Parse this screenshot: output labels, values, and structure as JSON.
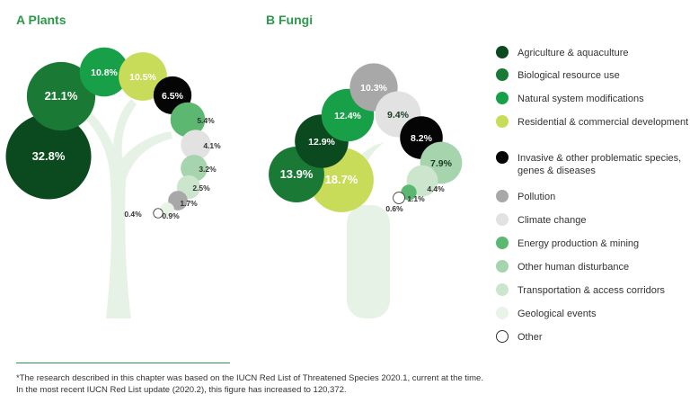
{
  "categories": [
    {
      "name": "Agriculture & aquaculture",
      "color": "#0b4a1e"
    },
    {
      "name": "Biological resource use",
      "color": "#1a7a35"
    },
    {
      "name": "Natural system modifications",
      "color": "#17a048"
    },
    {
      "name": "Residential & commercial development",
      "color": "#c8dc5a"
    },
    {
      "name": "Invasive & other problematic species, genes & diseases",
      "color": "#050505"
    },
    {
      "name": "Pollution",
      "color": "#a8a8a8"
    },
    {
      "name": "Climate change",
      "color": "#e2e2e2"
    },
    {
      "name": "Energy production & mining",
      "color": "#5cb870"
    },
    {
      "name": "Other human disturbance",
      "color": "#a6d4ad"
    },
    {
      "name": "Transportation & access corridors",
      "color": "#cbe6cd"
    },
    {
      "name": "Geological events",
      "color": "#e8f4e8"
    },
    {
      "name": "Other",
      "color": "#ffffff"
    }
  ],
  "chart_data": [
    {
      "type": "bubble",
      "title": "A Plants",
      "values": [
        {
          "category": "Agriculture & aquaculture",
          "value": 32.8,
          "label": "32.8%"
        },
        {
          "category": "Biological resource use",
          "value": 21.1,
          "label": "21.1%"
        },
        {
          "category": "Natural system modifications",
          "value": 10.8,
          "label": "10.8%"
        },
        {
          "category": "Residential & commercial development",
          "value": 10.5,
          "label": "10.5%"
        },
        {
          "category": "Invasive & other problematic species, genes & diseases",
          "value": 6.5,
          "label": "6.5%"
        },
        {
          "category": "Energy production & mining",
          "value": 5.4,
          "label": "5.4%"
        },
        {
          "category": "Climate change",
          "value": 4.1,
          "label": "4.1%"
        },
        {
          "category": "Other human disturbance",
          "value": 3.2,
          "label": "3.2%"
        },
        {
          "category": "Transportation & access corridors",
          "value": 2.5,
          "label": "2.5%"
        },
        {
          "category": "Pollution",
          "value": 1.7,
          "label": "1.7%"
        },
        {
          "category": "Geological events",
          "value": 0.9,
          "label": "0.9%"
        },
        {
          "category": "Other",
          "value": 0.4,
          "label": "0.4%"
        }
      ]
    },
    {
      "type": "bubble",
      "title": "B Fungi",
      "values": [
        {
          "category": "Residential & commercial development",
          "value": 18.7,
          "label": "18.7%"
        },
        {
          "category": "Biological resource use",
          "value": 13.9,
          "label": "13.9%"
        },
        {
          "category": "Agriculture & aquaculture",
          "value": 12.9,
          "label": "12.9%"
        },
        {
          "category": "Natural system modifications",
          "value": 12.4,
          "label": "12.4%"
        },
        {
          "category": "Pollution",
          "value": 10.3,
          "label": "10.3%"
        },
        {
          "category": "Climate change",
          "value": 9.4,
          "label": "9.4%"
        },
        {
          "category": "Invasive & other problematic species, genes & diseases",
          "value": 8.2,
          "label": "8.2%"
        },
        {
          "category": "Other human disturbance",
          "value": 7.9,
          "label": "7.9%"
        },
        {
          "category": "Transportation & access corridors",
          "value": 4.4,
          "label": "4.4%"
        },
        {
          "category": "Energy production & mining",
          "value": 1.1,
          "label": "1.1%"
        },
        {
          "category": "Other",
          "value": 0.6,
          "label": "0.6%"
        }
      ]
    }
  ],
  "footnote": {
    "line1": "*The research described in this chapter was based on the IUCN Red List of Threatened Species 2020.1, current at the time.",
    "line2": "In the most recent IUCN Red List update (2020.2), this figure has increased to 120,372."
  }
}
